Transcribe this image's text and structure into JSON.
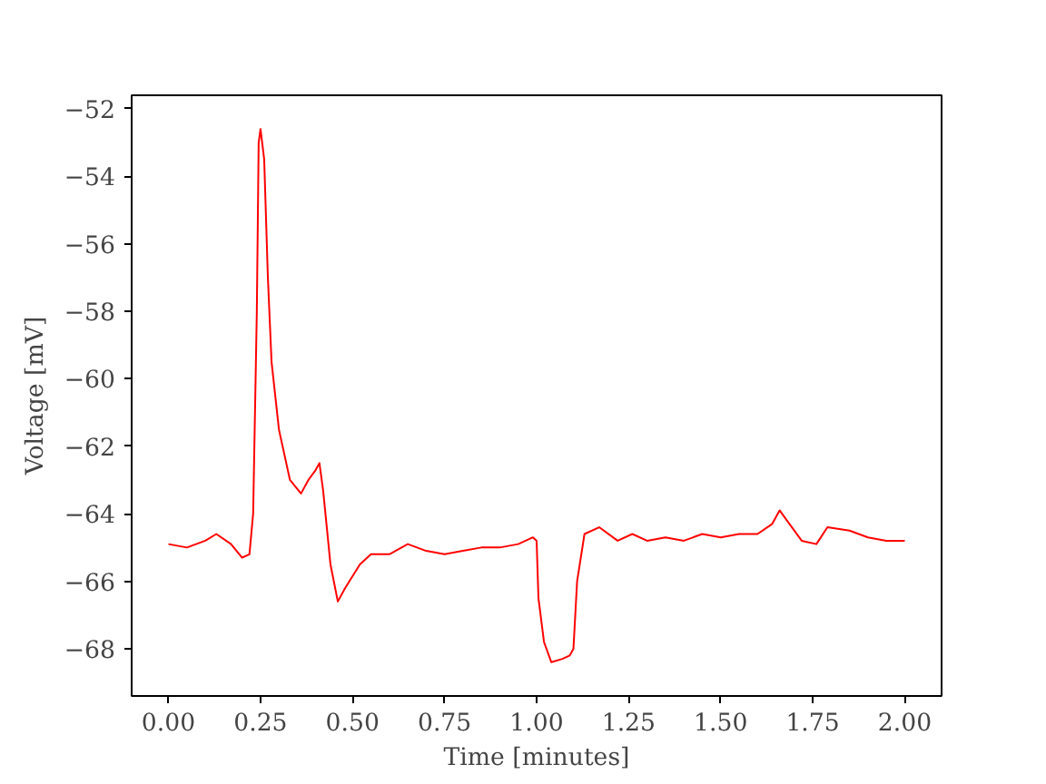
{
  "chart_data": {
    "type": "line",
    "xlabel": "Time [minutes]",
    "ylabel": "Voltage [mV]",
    "x": [
      0.0,
      0.05,
      0.1,
      0.13,
      0.17,
      0.2,
      0.22,
      0.23,
      0.24,
      0.245,
      0.25,
      0.26,
      0.27,
      0.28,
      0.3,
      0.33,
      0.36,
      0.38,
      0.4,
      0.41,
      0.42,
      0.44,
      0.46,
      0.48,
      0.52,
      0.55,
      0.6,
      0.65,
      0.7,
      0.75,
      0.8,
      0.85,
      0.9,
      0.95,
      0.99,
      1.0,
      1.005,
      1.02,
      1.04,
      1.07,
      1.09,
      1.1,
      1.11,
      1.13,
      1.17,
      1.22,
      1.26,
      1.3,
      1.35,
      1.4,
      1.45,
      1.5,
      1.55,
      1.6,
      1.64,
      1.66,
      1.68,
      1.72,
      1.76,
      1.79,
      1.85,
      1.9,
      1.95,
      2.0
    ],
    "series": [
      {
        "color": "#ff0000",
        "values": [
          -64.9,
          -65.0,
          -64.8,
          -64.6,
          -64.9,
          -65.3,
          -65.2,
          -64.0,
          -58.0,
          -53.0,
          -52.6,
          -53.5,
          -57.0,
          -59.5,
          -61.5,
          -63.0,
          -63.4,
          -63.0,
          -62.7,
          -62.5,
          -63.3,
          -65.5,
          -66.6,
          -66.2,
          -65.5,
          -65.2,
          -65.2,
          -64.9,
          -65.1,
          -65.2,
          -65.1,
          -65.0,
          -65.0,
          -64.9,
          -64.7,
          -64.8,
          -66.5,
          -67.8,
          -68.4,
          -68.3,
          -68.2,
          -68.0,
          -66.0,
          -64.6,
          -64.4,
          -64.8,
          -64.6,
          -64.8,
          -64.7,
          -64.8,
          -64.6,
          -64.7,
          -64.6,
          -64.6,
          -64.3,
          -63.9,
          -64.2,
          -64.8,
          -64.9,
          -64.4,
          -64.5,
          -64.7,
          -64.8,
          -64.8
        ]
      }
    ],
    "xlim": [
      -0.1,
      2.1
    ],
    "ylim": [
      -69.4,
      -51.6
    ],
    "xticks": [
      {
        "value": 0,
        "label": "0.00"
      },
      {
        "value": 0.25,
        "label": "0.25"
      },
      {
        "value": 0.5,
        "label": "0.50"
      },
      {
        "value": 0.75,
        "label": "0.75"
      },
      {
        "value": 1,
        "label": "1.00"
      },
      {
        "value": 1.25,
        "label": "1.25"
      },
      {
        "value": 1.5,
        "label": "1.50"
      },
      {
        "value": 1.75,
        "label": "1.75"
      },
      {
        "value": 2,
        "label": "2.00"
      }
    ],
    "yticks": [
      {
        "value": -68,
        "label": "−68"
      },
      {
        "value": -66,
        "label": "−66"
      },
      {
        "value": -64,
        "label": "−64"
      },
      {
        "value": -62,
        "label": "−62"
      },
      {
        "value": -60,
        "label": "−60"
      },
      {
        "value": -58,
        "label": "−58"
      },
      {
        "value": -56,
        "label": "−56"
      },
      {
        "value": -54,
        "label": "−54"
      },
      {
        "value": -52,
        "label": "−52"
      }
    ],
    "grid": false,
    "marker": "none",
    "line_style": "solid"
  }
}
